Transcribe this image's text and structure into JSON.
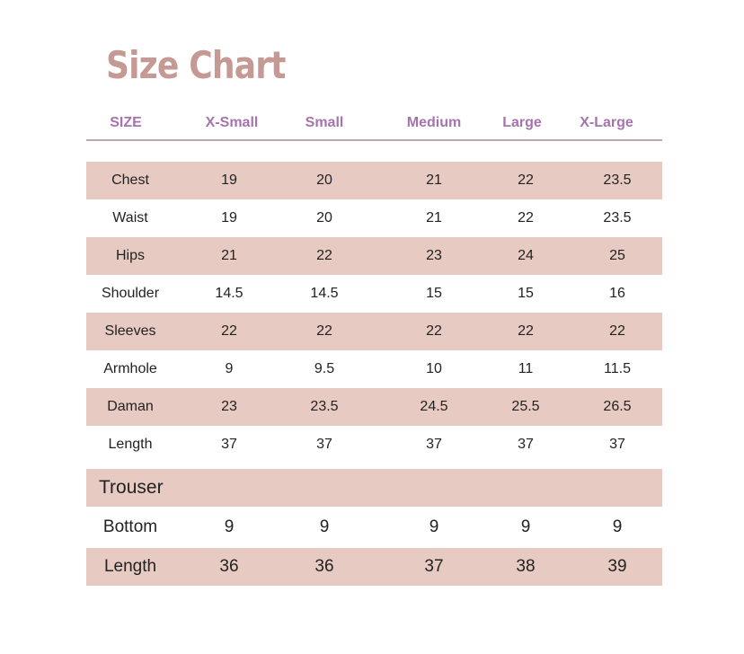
{
  "title": "Size Chart",
  "colors": {
    "title": "#c59994",
    "header": "#a673ad",
    "row_shade": "#e7cbc3"
  },
  "header": [
    "SIZE",
    "X-Small",
    "Small",
    "Medium",
    "Large",
    "X-Large"
  ],
  "rows": [
    {
      "label": "Chest",
      "values": [
        "19",
        "20",
        "21",
        "22",
        "23.5"
      ]
    },
    {
      "label": "Waist",
      "values": [
        "19",
        "20",
        "21",
        "22",
        "23.5"
      ]
    },
    {
      "label": "Hips",
      "values": [
        "21",
        "22",
        "23",
        "24",
        "25"
      ]
    },
    {
      "label": "Shoulder",
      "values": [
        "14.5",
        "14.5",
        "15",
        "15",
        "16"
      ]
    },
    {
      "label": "Sleeves",
      "values": [
        "22",
        "22",
        "22",
        "22",
        "22"
      ]
    },
    {
      "label": "Armhole",
      "values": [
        "9",
        "9.5",
        "10",
        "11",
        "11.5"
      ]
    },
    {
      "label": "Daman",
      "values": [
        "23",
        "23.5",
        "24.5",
        "25.5",
        "26.5"
      ]
    },
    {
      "label": "Length",
      "values": [
        "37",
        "37",
        "37",
        "37",
        "37"
      ]
    }
  ],
  "trouser_section": "Trouser",
  "trouser_rows": [
    {
      "label": "Bottom",
      "values": [
        "9",
        "9",
        "9",
        "9",
        "9"
      ]
    },
    {
      "label": "Length",
      "values": [
        "36",
        "36",
        "37",
        "38",
        "39"
      ]
    }
  ]
}
